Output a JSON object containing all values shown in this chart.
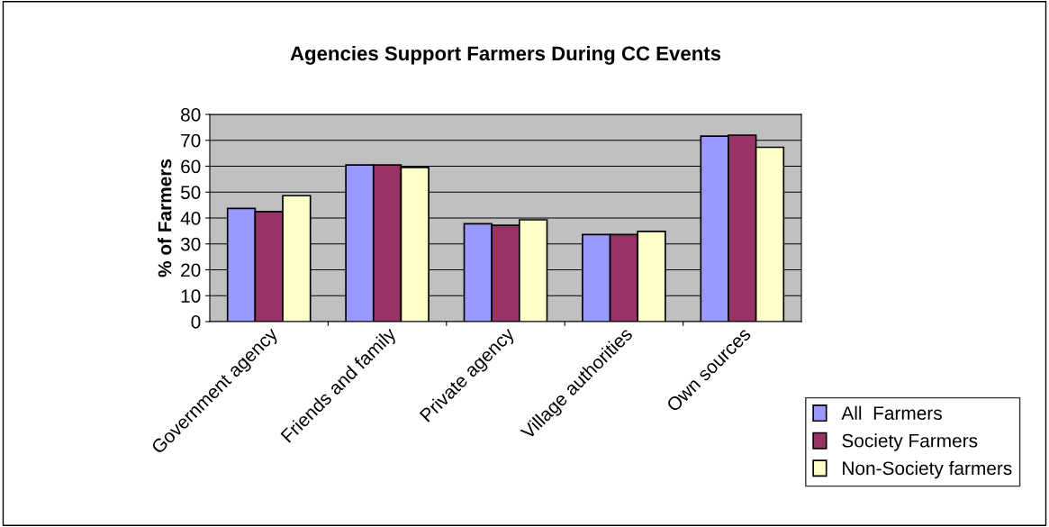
{
  "chart_data": {
    "type": "bar",
    "title": "Agencies Support Farmers During CC Events",
    "ylabel": "% of Farmers",
    "categories": [
      "Government agency",
      "Friends and family",
      "Private agency",
      "Village authorities",
      "Own sources"
    ],
    "series": [
      {
        "name": "All  Farmers",
        "color": "#9999ff",
        "values": [
          43.7,
          60.5,
          37.8,
          33.6,
          71.6
        ]
      },
      {
        "name": "Society Farmers",
        "color": "#993366",
        "values": [
          42.5,
          60.5,
          37.2,
          33.6,
          72.0
        ]
      },
      {
        "name": "Non-Society farmers",
        "color": "#ffffcc",
        "values": [
          48.6,
          59.5,
          39.3,
          34.8,
          67.3
        ]
      }
    ],
    "ylim": [
      0,
      80
    ],
    "yticks": [
      0,
      10,
      20,
      30,
      40,
      50,
      60,
      70,
      80
    ],
    "grid": "y",
    "legend": "bottom right"
  }
}
